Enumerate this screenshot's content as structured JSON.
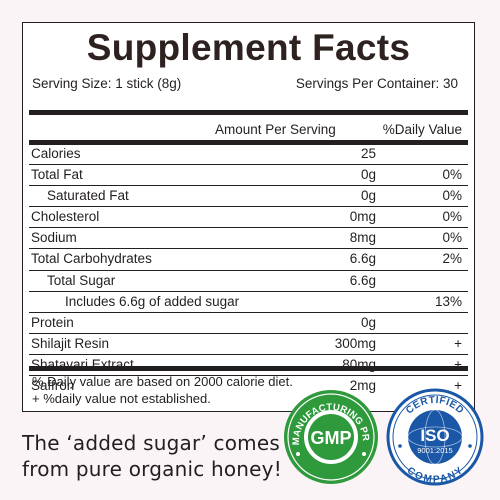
{
  "title": "Supplement Facts",
  "serving_size": "Serving Size: 1 stick (8g)",
  "servings_per_container": "Servings Per Container: 30",
  "headers": {
    "amount": "Amount Per Serving",
    "daily": "%Daily Value"
  },
  "rows": [
    {
      "name": "Calories",
      "amount": "25",
      "daily": "",
      "indent": 0
    },
    {
      "name": "Total Fat",
      "amount": "0g",
      "daily": "0%",
      "indent": 0
    },
    {
      "name": "Saturated Fat",
      "amount": "0g",
      "daily": "0%",
      "indent": 1
    },
    {
      "name": "Cholesterol",
      "amount": "0mg",
      "daily": "0%",
      "indent": 0
    },
    {
      "name": "Sodium",
      "amount": "8mg",
      "daily": "0%",
      "indent": 0
    },
    {
      "name": "Total Carbohydrates",
      "amount": "6.6g",
      "daily": "2%",
      "indent": 0
    },
    {
      "name": "Total Sugar",
      "amount": "6.6g",
      "daily": "",
      "indent": 1
    },
    {
      "name": "Includes 6.6g of added sugar",
      "amount": "",
      "daily": "13%",
      "indent": 2
    },
    {
      "name": "Protein",
      "amount": "0g",
      "daily": "",
      "indent": 0
    },
    {
      "name": "Shilajit Resin",
      "amount": "300mg",
      "daily": "+",
      "indent": 0
    },
    {
      "name": "Shatavari Extract",
      "amount": "80mg",
      "daily": "+",
      "indent": 0
    },
    {
      "name": "Saffron",
      "amount": "2mg",
      "daily": "+",
      "indent": 0
    }
  ],
  "footnotes": [
    "% Daily value are based on 2000 calorie diet.",
    "+ %daily value not established."
  ],
  "caption": [
    "The ‘added sugar’ comes",
    "from pure organic honey!"
  ],
  "gmp_badge": {
    "center": "GMP",
    "ring": "GOOD MANUFACTURING PRACTICE"
  },
  "iso_badge": {
    "top": "CERTIFIED",
    "center": "ISO",
    "number": "9001:2015",
    "bottom": "COMPANY"
  },
  "colors": {
    "text": "#231f20",
    "background": "#fbf4f6",
    "gmp_green": "#2f9a3c",
    "iso_blue": "#1a57a6"
  }
}
